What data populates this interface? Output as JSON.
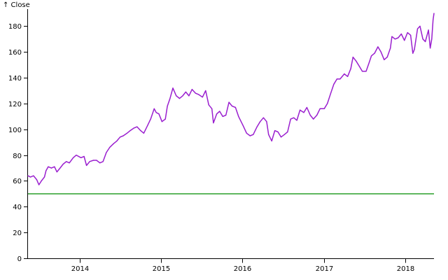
{
  "chart_data": {
    "type": "line",
    "y_axis_label": "↑ Close",
    "xlim": [
      "2013-05-13",
      "2018-05-11"
    ],
    "ylim": [
      0,
      190
    ],
    "x_ticks": [
      "2014",
      "2015",
      "2016",
      "2017",
      "2018"
    ],
    "y_ticks": [
      0,
      20,
      40,
      60,
      80,
      100,
      120,
      140,
      160,
      180
    ],
    "grid": false,
    "reference_line": {
      "y": 50,
      "color": "#2ca02c"
    },
    "series": [
      {
        "color": "#9a1fcf",
        "points": [
          [
            "2013-05-13",
            64
          ],
          [
            "2013-05-24",
            63
          ],
          [
            "2013-06-07",
            64
          ],
          [
            "2013-06-21",
            61
          ],
          [
            "2013-07-01",
            57
          ],
          [
            "2013-07-12",
            60
          ],
          [
            "2013-07-26",
            63
          ],
          [
            "2013-08-02",
            68
          ],
          [
            "2013-08-12",
            71
          ],
          [
            "2013-08-26",
            70
          ],
          [
            "2013-09-09",
            71
          ],
          [
            "2013-09-20",
            67
          ],
          [
            "2013-10-04",
            70
          ],
          [
            "2013-10-18",
            73
          ],
          [
            "2013-11-01",
            75
          ],
          [
            "2013-11-15",
            74
          ],
          [
            "2013-12-02",
            78
          ],
          [
            "2013-12-16",
            80
          ],
          [
            "2014-01-06",
            78
          ],
          [
            "2014-01-20",
            79
          ],
          [
            "2014-01-31",
            72
          ],
          [
            "2014-02-14",
            75
          ],
          [
            "2014-03-03",
            76
          ],
          [
            "2014-03-17",
            76
          ],
          [
            "2014-04-01",
            74
          ],
          [
            "2014-04-15",
            75
          ],
          [
            "2014-04-30",
            82
          ],
          [
            "2014-05-15",
            86
          ],
          [
            "2014-06-02",
            89
          ],
          [
            "2014-06-16",
            91
          ],
          [
            "2014-07-01",
            94
          ],
          [
            "2014-07-15",
            95
          ],
          [
            "2014-08-01",
            97
          ],
          [
            "2014-08-15",
            99
          ],
          [
            "2014-09-01",
            101
          ],
          [
            "2014-09-15",
            102
          ],
          [
            "2014-10-01",
            99
          ],
          [
            "2014-10-15",
            97
          ],
          [
            "2014-11-01",
            103
          ],
          [
            "2014-11-15",
            108
          ],
          [
            "2014-12-01",
            116
          ],
          [
            "2014-12-10",
            113
          ],
          [
            "2014-12-22",
            112
          ],
          [
            "2015-01-05",
            106
          ],
          [
            "2015-01-20",
            108
          ],
          [
            "2015-01-29",
            118
          ],
          [
            "2015-02-10",
            124
          ],
          [
            "2015-02-23",
            132
          ],
          [
            "2015-03-10",
            126
          ],
          [
            "2015-03-25",
            124
          ],
          [
            "2015-04-08",
            126
          ],
          [
            "2015-04-22",
            129
          ],
          [
            "2015-05-06",
            126
          ],
          [
            "2015-05-20",
            131
          ],
          [
            "2015-06-05",
            128
          ],
          [
            "2015-06-19",
            127
          ],
          [
            "2015-07-06",
            125
          ],
          [
            "2015-07-20",
            130
          ],
          [
            "2015-08-03",
            119
          ],
          [
            "2015-08-17",
            116
          ],
          [
            "2015-08-24",
            105
          ],
          [
            "2015-09-08",
            112
          ],
          [
            "2015-09-21",
            114
          ],
          [
            "2015-10-05",
            110
          ],
          [
            "2015-10-19",
            111
          ],
          [
            "2015-11-02",
            121
          ],
          [
            "2015-11-16",
            118
          ],
          [
            "2015-12-01",
            117
          ],
          [
            "2015-12-15",
            110
          ],
          [
            "2016-01-04",
            103
          ],
          [
            "2016-01-20",
            97
          ],
          [
            "2016-02-05",
            95
          ],
          [
            "2016-02-19",
            96
          ],
          [
            "2016-03-07",
            102
          ],
          [
            "2016-03-21",
            106
          ],
          [
            "2016-04-05",
            109
          ],
          [
            "2016-04-19",
            106
          ],
          [
            "2016-04-28",
            96
          ],
          [
            "2016-05-12",
            91
          ],
          [
            "2016-05-26",
            99
          ],
          [
            "2016-06-09",
            98
          ],
          [
            "2016-06-23",
            94
          ],
          [
            "2016-07-08",
            96
          ],
          [
            "2016-07-22",
            98
          ],
          [
            "2016-08-05",
            108
          ],
          [
            "2016-08-19",
            109
          ],
          [
            "2016-09-02",
            107
          ],
          [
            "2016-09-16",
            115
          ],
          [
            "2016-10-03",
            113
          ],
          [
            "2016-10-17",
            117
          ],
          [
            "2016-11-01",
            111
          ],
          [
            "2016-11-15",
            108
          ],
          [
            "2016-12-01",
            111
          ],
          [
            "2016-12-15",
            116
          ],
          [
            "2017-01-03",
            116
          ],
          [
            "2017-01-17",
            120
          ],
          [
            "2017-02-01",
            128
          ],
          [
            "2017-02-15",
            135
          ],
          [
            "2017-03-01",
            139
          ],
          [
            "2017-03-15",
            139
          ],
          [
            "2017-04-03",
            143
          ],
          [
            "2017-04-18",
            141
          ],
          [
            "2017-05-02",
            147
          ],
          [
            "2017-05-12",
            156
          ],
          [
            "2017-05-26",
            153
          ],
          [
            "2017-06-09",
            149
          ],
          [
            "2017-06-23",
            145
          ],
          [
            "2017-07-10",
            145
          ],
          [
            "2017-07-24",
            152
          ],
          [
            "2017-08-03",
            157
          ],
          [
            "2017-08-17",
            159
          ],
          [
            "2017-09-01",
            164
          ],
          [
            "2017-09-15",
            160
          ],
          [
            "2017-09-29",
            154
          ],
          [
            "2017-10-13",
            156
          ],
          [
            "2017-10-27",
            163
          ],
          [
            "2017-11-03",
            172
          ],
          [
            "2017-11-17",
            170
          ],
          [
            "2017-12-01",
            171
          ],
          [
            "2017-12-15",
            174
          ],
          [
            "2017-12-29",
            169
          ],
          [
            "2018-01-12",
            175
          ],
          [
            "2018-01-26",
            173
          ],
          [
            "2018-02-05",
            159
          ],
          [
            "2018-02-12",
            162
          ],
          [
            "2018-02-26",
            178
          ],
          [
            "2018-03-09",
            180
          ],
          [
            "2018-03-22",
            170
          ],
          [
            "2018-04-02",
            168
          ],
          [
            "2018-04-16",
            177
          ],
          [
            "2018-04-24",
            163
          ],
          [
            "2018-05-01",
            170
          ],
          [
            "2018-05-07",
            185
          ],
          [
            "2018-05-11",
            190
          ]
        ]
      }
    ]
  }
}
